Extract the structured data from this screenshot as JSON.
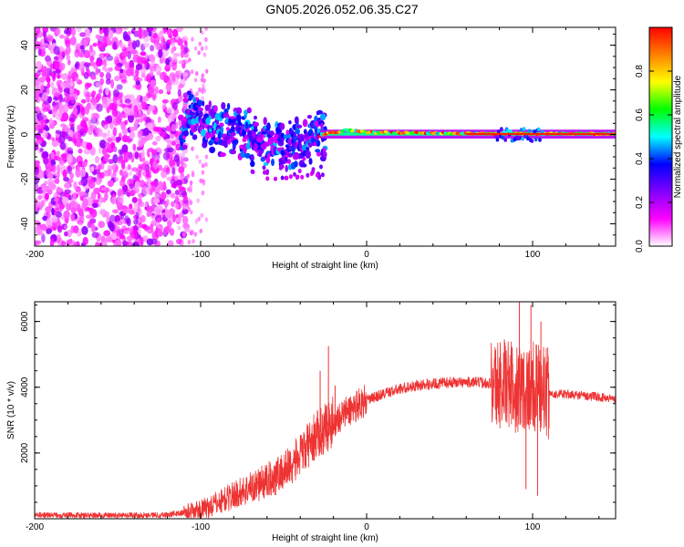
{
  "title": "GN05.2026.052.06.35.C27",
  "chart_data": [
    {
      "type": "heatmap",
      "xlabel": "Height of straight line (km)",
      "ylabel": "Frequency (Hz)",
      "xlim": [
        -200,
        150
      ],
      "ylim": [
        -50,
        48
      ],
      "xticks": [
        -200,
        -100,
        0,
        100
      ],
      "yticks": [
        -40,
        -20,
        0,
        20,
        40
      ],
      "colorbar": {
        "label": "Normalized spectral amplitude",
        "range": [
          0.0,
          1.0
        ],
        "ticks": [
          0.0,
          0.2,
          0.4,
          0.6,
          0.8
        ],
        "tick_labels": [
          "0.0",
          "0.2",
          "0.4",
          "0.6",
          "0.8"
        ],
        "colors": [
          "#ffffff",
          "#ff00ff",
          "#8000ff",
          "#0000ff",
          "#00ffff",
          "#00ff00",
          "#ffff00",
          "#ff8000",
          "#ff0000"
        ]
      },
      "signal_track": [
        {
          "height": -110,
          "freq": 9
        },
        {
          "height": -100,
          "freq": 6
        },
        {
          "height": -90,
          "freq": 3
        },
        {
          "height": -80,
          "freq": 1
        },
        {
          "height": -70,
          "freq": -2
        },
        {
          "height": -60,
          "freq": -4
        },
        {
          "height": -50,
          "freq": -5
        },
        {
          "height": -40,
          "freq": -4
        },
        {
          "height": -30,
          "freq": -1
        },
        {
          "height": -20,
          "freq": 1
        },
        {
          "height": -10,
          "freq": 2
        },
        {
          "height": 0,
          "freq": 1
        },
        {
          "height": 50,
          "freq": 0.5
        },
        {
          "height": 100,
          "freq": 0.3
        },
        {
          "height": 150,
          "freq": 0.3
        }
      ],
      "noise_region": [
        -200,
        -108
      ]
    },
    {
      "type": "line",
      "xlabel": "Height of straight line (km)",
      "ylabel": "SNR (10 * v/v)",
      "xlim": [
        -200,
        150
      ],
      "ylim": [
        0,
        6600
      ],
      "xticks": [
        -200,
        -100,
        0,
        100
      ],
      "yticks": [
        2000,
        4000,
        6000
      ],
      "series": [
        {
          "name": "SNR",
          "color": "#ee3333",
          "x": [
            -200,
            -150,
            -120,
            -100,
            -90,
            -80,
            -70,
            -60,
            -50,
            -40,
            -35,
            -30,
            -25,
            -20,
            -15,
            -10,
            -5,
            0,
            10,
            20,
            30,
            40,
            50,
            60,
            70,
            80,
            85,
            90,
            95,
            100,
            105,
            110,
            120,
            130,
            140,
            150
          ],
          "y": [
            110,
            100,
            120,
            250,
            480,
            720,
            950,
            1150,
            1450,
            1900,
            2250,
            2550,
            2750,
            2950,
            3150,
            3300,
            3500,
            3600,
            3800,
            3950,
            4050,
            4100,
            4150,
            4150,
            4150,
            4100,
            4050,
            4000,
            4000,
            4000,
            3950,
            3800,
            3780,
            3750,
            3700,
            3650
          ],
          "spikes": [
            {
              "x": -23,
              "y": 5250
            },
            {
              "x": -19,
              "y": 4050
            },
            {
              "x": -28,
              "y": 4500
            },
            {
              "x": 83,
              "y": 5450
            },
            {
              "x": 88,
              "y": 4700
            },
            {
              "x": 92,
              "y": 6600
            },
            {
              "x": 96,
              "y": 900
            },
            {
              "x": 99,
              "y": 6500
            },
            {
              "x": 103,
              "y": 700
            },
            {
              "x": 105,
              "y": 6000
            }
          ]
        }
      ]
    }
  ]
}
